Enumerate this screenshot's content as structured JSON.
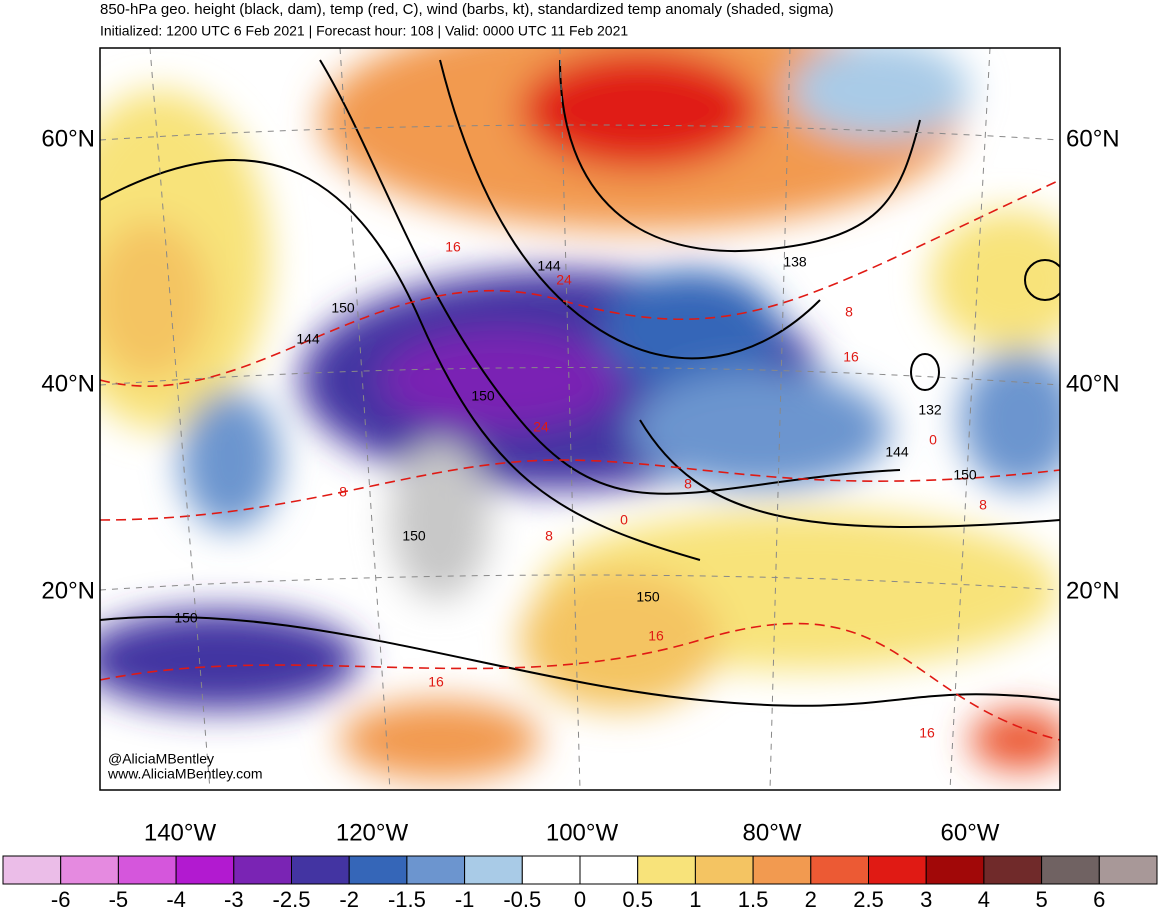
{
  "header": {
    "title": "850-hPa geo. height (black, dam), temp (red, C), wind (barbs, kt), standardized temp anomaly (shaded, sigma)",
    "subtitle": "Initialized: 1200 UTC 6 Feb 2021 | Forecast hour: 108 | Valid: 0000 UTC 11 Feb 2021"
  },
  "map": {
    "lat_labels": [
      "60°N",
      "40°N",
      "20°N"
    ],
    "lon_labels": [
      "140°W",
      "120°W",
      "100°W",
      "80°W",
      "60°W"
    ],
    "height_labels": [
      "150",
      "144",
      "144",
      "138",
      "150",
      "132",
      "144",
      "150",
      "150",
      "150",
      "150"
    ],
    "temp_labels": [
      "16",
      "24",
      "8",
      "16",
      "24",
      "8",
      "8",
      "0",
      "8",
      "0",
      "8",
      "16",
      "16",
      "16"
    ],
    "watermark": [
      "@AliciaMBentley",
      "www.AliciaMBentley.com"
    ]
  },
  "colorbar": {
    "ticks": [
      -6,
      -5,
      -4,
      -3,
      -2.5,
      -2,
      -1.5,
      -1,
      -0.5,
      0,
      0.5,
      1,
      1.5,
      2,
      2.5,
      3,
      4,
      5,
      6
    ],
    "colors": [
      "#ebbde8",
      "#e58ae0",
      "#d556dc",
      "#b21ad0",
      "#7a24b4",
      "#4334a2",
      "#3566b8",
      "#6c95cf",
      "#a9cbe7",
      "#ffffff",
      "#ffffff",
      "#f8e37a",
      "#f4c462",
      "#f29a50",
      "#ec5a34",
      "#e01a14",
      "#a10808",
      "#702a2a",
      "#706262",
      "#a89898"
    ]
  }
}
